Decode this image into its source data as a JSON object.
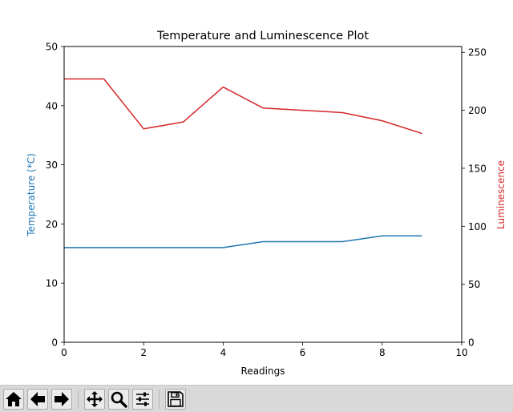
{
  "chart_data": {
    "type": "line",
    "title": "Temperature and Luminescence Plot",
    "xlabel": "Readings",
    "ylabel_left": "Temperature (*C)",
    "ylabel_right": "Luminescence",
    "xlim": [
      0,
      10
    ],
    "ylim_left": [
      0,
      50
    ],
    "ylim_right": [
      0,
      255
    ],
    "xticks": [
      "0",
      "2",
      "4",
      "6",
      "8",
      "10"
    ],
    "yticks_left": [
      "0",
      "10",
      "20",
      "30",
      "40",
      "50"
    ],
    "yticks_right": [
      "0",
      "50",
      "100",
      "150",
      "200",
      "250"
    ],
    "grid": false,
    "colors": {
      "temperature": "#1f77b4",
      "luminescence": "#d62728"
    },
    "series": [
      {
        "axis": "left",
        "color": "#1f77b4",
        "x": [
          0,
          1,
          2,
          3,
          4,
          5,
          6,
          7,
          8,
          9
        ],
        "values": [
          16,
          16,
          16,
          16,
          16,
          17,
          17,
          17,
          18,
          18
        ]
      },
      {
        "axis": "right",
        "color": "#d62728",
        "x": [
          0,
          1,
          2,
          3,
          4,
          5,
          6,
          7,
          8,
          9
        ],
        "values": [
          227,
          227,
          184,
          190,
          220,
          202,
          200,
          198,
          191,
          180
        ]
      }
    ]
  },
  "toolbar": {
    "buttons": [
      {
        "name": "home-button",
        "icon": "home-icon"
      },
      {
        "name": "back-button",
        "icon": "arrow-left-icon"
      },
      {
        "name": "forward-button",
        "icon": "arrow-right-icon"
      },
      {
        "name": "pan-button",
        "icon": "move-icon"
      },
      {
        "name": "zoom-button",
        "icon": "magnifier-icon"
      },
      {
        "name": "configure-subplots-button",
        "icon": "sliders-icon"
      },
      {
        "name": "save-button",
        "icon": "floppy-disk-icon"
      }
    ]
  }
}
